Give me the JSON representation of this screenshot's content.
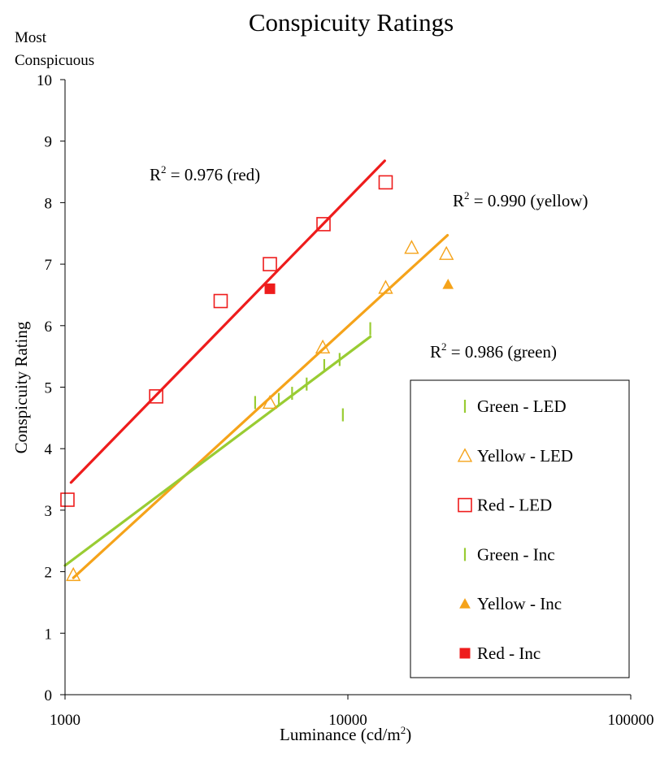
{
  "chart_data": {
    "type": "scatter",
    "title": "Conspicuity Ratings",
    "top_left_label": [
      "Most",
      "Conspicuous"
    ],
    "xlabel": "Luminance (cd/m",
    "xlabel_sup": "2",
    "xlabel_end": ")",
    "ylabel": "Conspicuity Rating",
    "x_scale": "log",
    "xlim": [
      1000,
      100000
    ],
    "ylim": [
      0,
      10
    ],
    "x_tick_values": [
      1000,
      10000,
      100000
    ],
    "x_tick_labels": [
      "1000",
      "10000",
      "100000"
    ],
    "y_tick_values": [
      0,
      1,
      2,
      3,
      4,
      5,
      6,
      7,
      8,
      9,
      10
    ],
    "y_tick_labels": [
      "0",
      "1",
      "2",
      "3",
      "4",
      "5",
      "6",
      "7",
      "8",
      "9",
      "10"
    ],
    "grid": false,
    "legend_position": "bottom-right",
    "series": [
      {
        "name": "Green - LED",
        "color": "#99cc33",
        "marker": "vertical-dash",
        "points": [
          [
            4700,
            4.75
          ],
          [
            5700,
            4.8
          ],
          [
            6350,
            4.9
          ],
          [
            7150,
            5.05
          ],
          [
            8250,
            5.35
          ],
          [
            9350,
            5.45
          ],
          [
            12000,
            5.95
          ]
        ]
      },
      {
        "name": "Yellow - LED",
        "color": "#f5a31a",
        "marker": "triangle-open",
        "points": [
          [
            1070,
            1.95
          ],
          [
            5300,
            4.75
          ],
          [
            8150,
            5.65
          ],
          [
            13600,
            6.62
          ],
          [
            16800,
            7.27
          ],
          [
            22300,
            7.17
          ]
        ]
      },
      {
        "name": "Red - LED",
        "color": "#ee1c1c",
        "marker": "square-open",
        "points": [
          [
            1020,
            3.17
          ],
          [
            2100,
            4.85
          ],
          [
            3550,
            6.4
          ],
          [
            5300,
            7.0
          ],
          [
            8200,
            7.65
          ],
          [
            13600,
            8.33
          ]
        ]
      },
      {
        "name": "Green - Inc",
        "color": "#99cc33",
        "marker": "vertical-dash",
        "points": [
          [
            9600,
            4.55
          ]
        ]
      },
      {
        "name": "Yellow - Inc",
        "color": "#f5a31a",
        "marker": "triangle-filled",
        "points": [
          [
            22600,
            6.67
          ]
        ]
      },
      {
        "name": "Red - Inc",
        "color": "#ee1c1c",
        "marker": "square-filled",
        "points": [
          [
            5300,
            6.6
          ]
        ]
      }
    ],
    "trendlines": [
      {
        "color": "#ee1c1c",
        "x_range": [
          1050,
          13500
        ],
        "y_start": 3.45,
        "y_end": 8.68
      },
      {
        "color": "#f5a31a",
        "x_range": [
          1070,
          22500
        ],
        "y_start": 1.9,
        "y_end": 7.47
      },
      {
        "color": "#99cc33",
        "x_range": [
          1000,
          12000
        ],
        "y_start": 2.1,
        "y_end": 5.82
      }
    ],
    "annotations": [
      {
        "prefix": "R",
        "sup": "2",
        "text": " = 0.976 (red)"
      },
      {
        "prefix": "R",
        "sup": "2",
        "text": " = 0.990 (yellow)"
      },
      {
        "prefix": "R",
        "sup": "2",
        "text": " = 0.986 (green)"
      }
    ]
  }
}
